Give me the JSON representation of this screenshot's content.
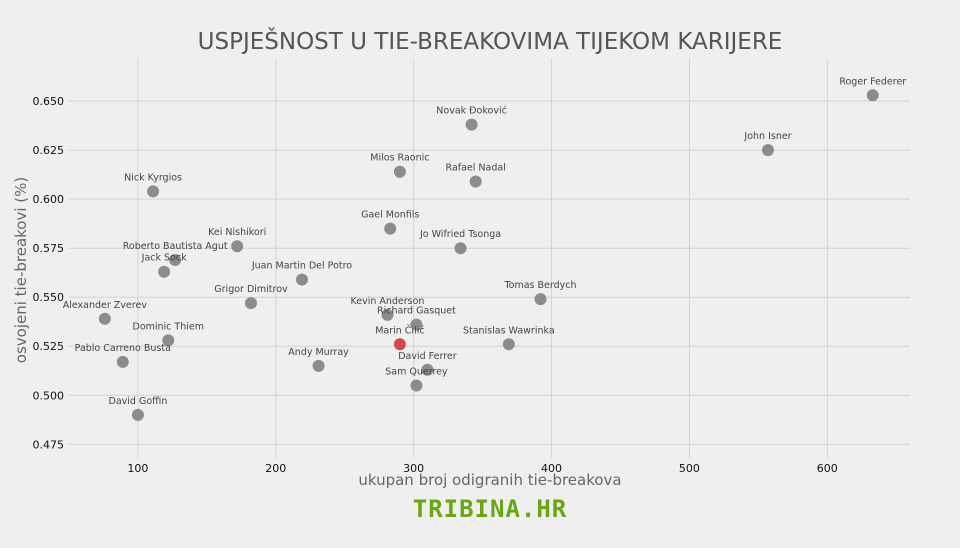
{
  "chart_data": {
    "type": "scatter",
    "title": "USPJEŠNOST U TIE-BREAKOVIMA TIJEKOM KARIJERE",
    "xlabel": "ukupan broj odigranih tie-breakova",
    "ylabel": "osvojeni tie-breakovi (%)",
    "xlim": [
      50,
      660
    ],
    "ylim": [
      0.468,
      0.672
    ],
    "xticks": [
      100,
      200,
      300,
      400,
      500,
      600
    ],
    "yticks": [
      0.475,
      0.5,
      0.525,
      0.55,
      0.575,
      0.6,
      0.625,
      0.65
    ],
    "ytick_labels": [
      "0.475",
      "0.500",
      "0.525",
      "0.550",
      "0.575",
      "0.600",
      "0.625",
      "0.650"
    ],
    "grid": true,
    "highlight_color": "#cc4b4b",
    "point_color": "#8c8c8c",
    "points": [
      {
        "name": "Roger Federer",
        "x": 633,
        "y": 0.653
      },
      {
        "name": "Novak Đoković",
        "x": 342,
        "y": 0.638
      },
      {
        "name": "John Isner",
        "x": 557,
        "y": 0.625
      },
      {
        "name": "Milos Raonic",
        "x": 290,
        "y": 0.614
      },
      {
        "name": "Rafael Nadal",
        "x": 345,
        "y": 0.609
      },
      {
        "name": "Nick Kyrgios",
        "x": 111,
        "y": 0.604
      },
      {
        "name": "Gael Monfils",
        "x": 283,
        "y": 0.585
      },
      {
        "name": "Kei Nishikori",
        "x": 172,
        "y": 0.576
      },
      {
        "name": "Jo Wifried Tsonga",
        "x": 334,
        "y": 0.575
      },
      {
        "name": "Roberto Bautista Agut",
        "x": 127,
        "y": 0.569
      },
      {
        "name": "Jack Sock",
        "x": 119,
        "y": 0.563
      },
      {
        "name": "Juan Martin Del Potro",
        "x": 219,
        "y": 0.559
      },
      {
        "name": "Tomas Berdych",
        "x": 392,
        "y": 0.549
      },
      {
        "name": "Grigor Dimitrov",
        "x": 182,
        "y": 0.547
      },
      {
        "name": "Kevin Anderson",
        "x": 281,
        "y": 0.541
      },
      {
        "name": "Alexander Zverev",
        "x": 76,
        "y": 0.539
      },
      {
        "name": "Richard Gasquet",
        "x": 302,
        "y": 0.536
      },
      {
        "name": "Dominic Thiem",
        "x": 122,
        "y": 0.528
      },
      {
        "name": "Marin Čilić",
        "x": 290,
        "y": 0.526,
        "highlight": true
      },
      {
        "name": "Stanislas Wawrinka",
        "x": 369,
        "y": 0.526
      },
      {
        "name": "Pablo Carreno Busta",
        "x": 89,
        "y": 0.517
      },
      {
        "name": "Andy Murray",
        "x": 231,
        "y": 0.515
      },
      {
        "name": "David Ferrer",
        "x": 310,
        "y": 0.513
      },
      {
        "name": "Sam Querrey",
        "x": 302,
        "y": 0.505
      },
      {
        "name": "David Goffin",
        "x": 100,
        "y": 0.49
      }
    ]
  },
  "brand": "TRIBINA.HR"
}
